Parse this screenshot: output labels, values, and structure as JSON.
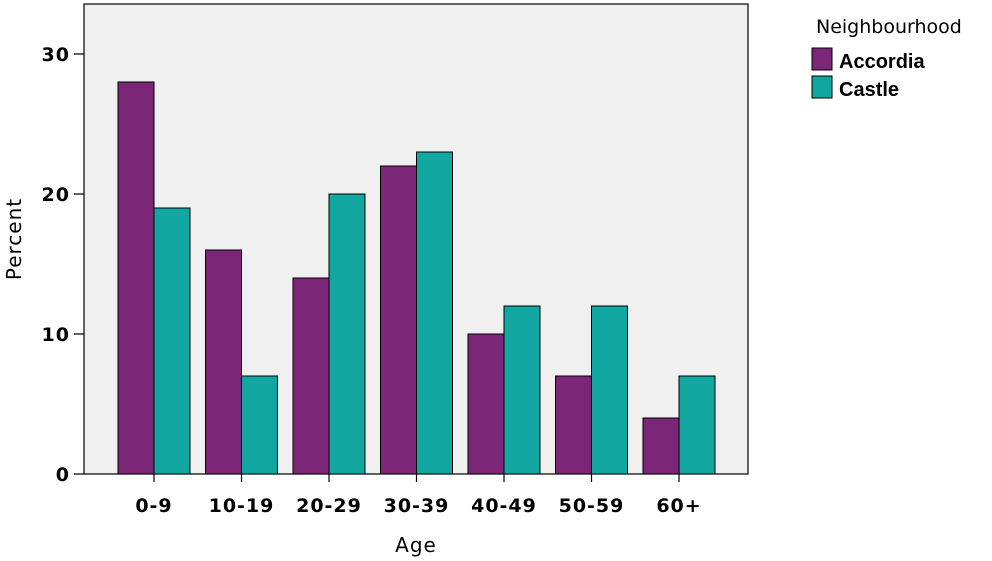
{
  "chart_data": {
    "type": "bar",
    "title": "",
    "xlabel": "Age",
    "ylabel": "Percent",
    "categories": [
      "0-9",
      "10-19",
      "20-29",
      "30-39",
      "40-49",
      "50-59",
      "60+"
    ],
    "series": [
      {
        "name": "Accordia",
        "values": [
          28,
          16,
          14,
          22,
          10,
          7,
          4
        ],
        "color": "#7b2677"
      },
      {
        "name": "Castle",
        "values": [
          19,
          7,
          20,
          23,
          12,
          12,
          7
        ],
        "color": "#12a6a0"
      }
    ],
    "ylim": [
      0,
      30
    ],
    "yticks": [
      "0",
      "10",
      "20",
      "30"
    ],
    "grid": false,
    "plot_background": "#f0f0f0",
    "legend": {
      "title": "Neighbourhood",
      "placement": "right"
    }
  }
}
